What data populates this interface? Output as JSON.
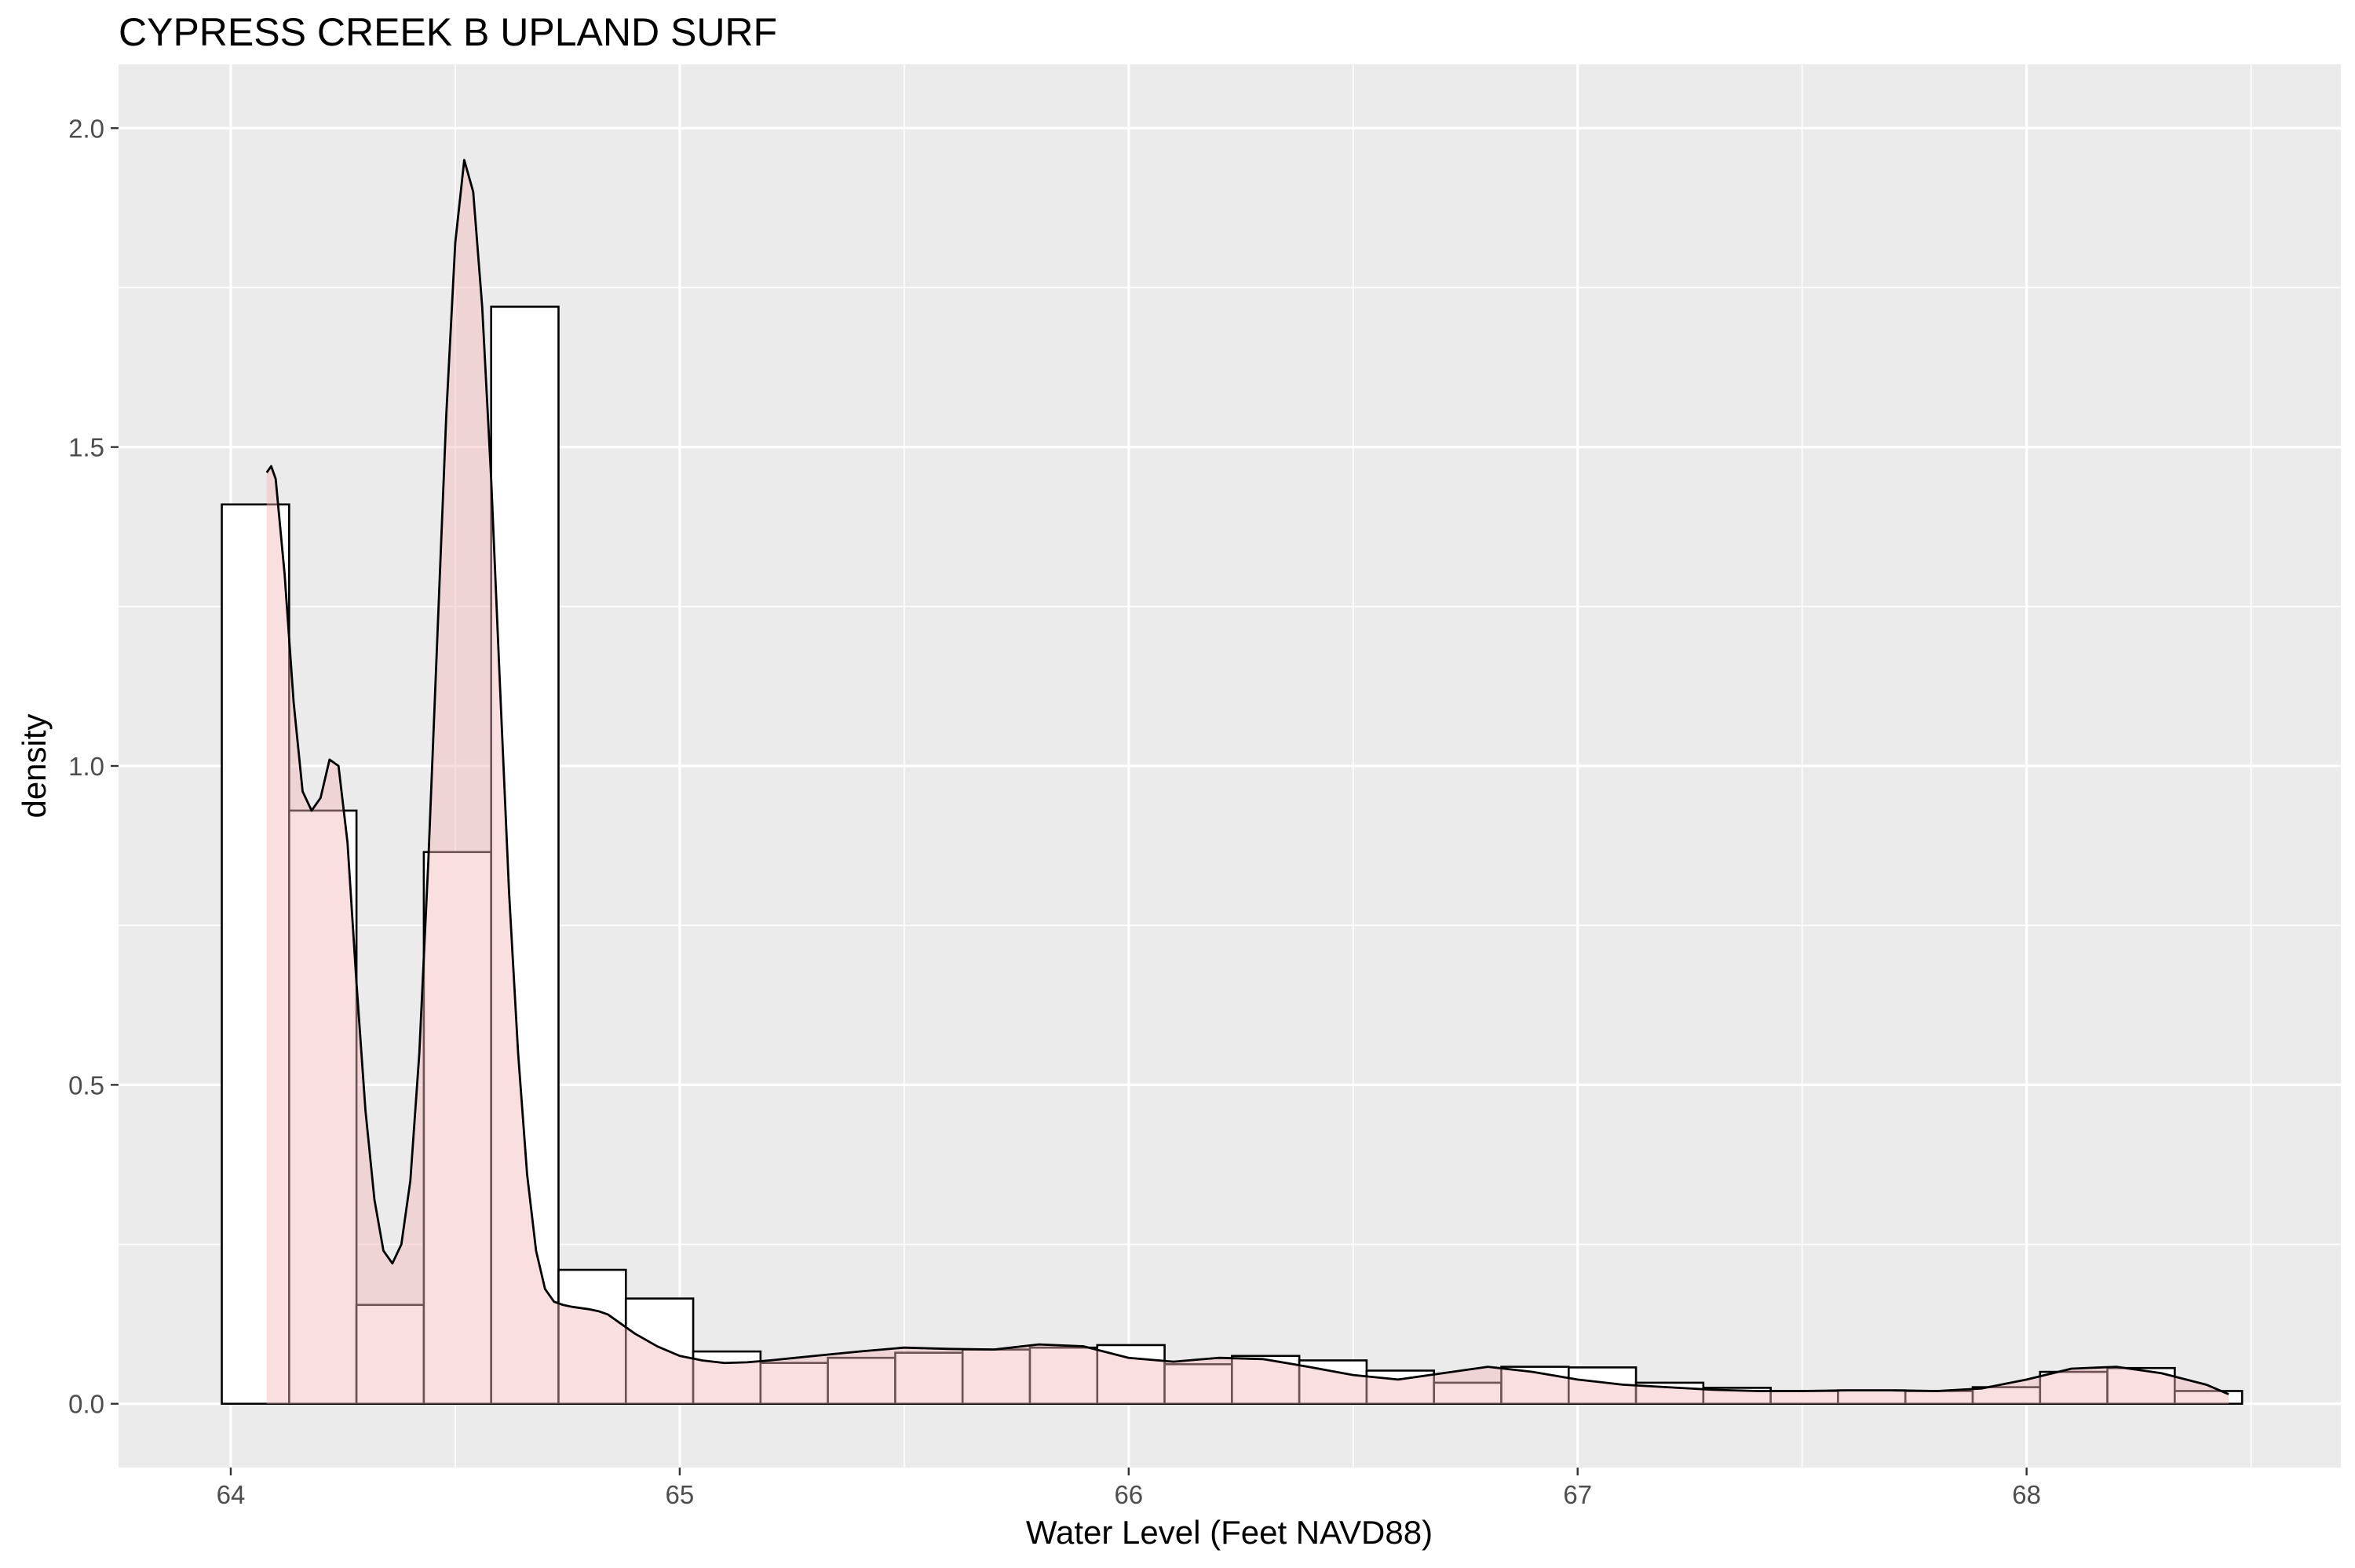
{
  "chart_data": {
    "type": "histogram",
    "title": "CYPRESS CREEK B UPLAND SURF",
    "xlabel": "Water Level (Feet NAVD88)",
    "ylabel": "density",
    "xlim": [
      63.75,
      68.7
    ],
    "ylim": [
      -0.1,
      2.1
    ],
    "x_ticks": [
      "64",
      "65",
      "66",
      "67",
      "68"
    ],
    "y_ticks": [
      "0.0",
      "0.5",
      "1.0",
      "1.5",
      "2.0"
    ],
    "grid": true,
    "background_color": "#ebebeb",
    "bar_fill_color": "#ffffff",
    "density_fill_color": "#f4b8bd",
    "line_color": "#000000",
    "bin_width": 0.15,
    "histogram_bins": [
      {
        "x0": 63.98,
        "x1": 64.13,
        "density": 1.41
      },
      {
        "x0": 64.13,
        "x1": 64.28,
        "density": 0.93
      },
      {
        "x0": 64.28,
        "x1": 64.43,
        "density": 0.155
      },
      {
        "x0": 64.43,
        "x1": 64.58,
        "density": 0.865
      },
      {
        "x0": 64.58,
        "x1": 64.73,
        "density": 1.72
      },
      {
        "x0": 64.73,
        "x1": 64.88,
        "density": 0.21
      },
      {
        "x0": 64.88,
        "x1": 65.03,
        "density": 0.165
      },
      {
        "x0": 65.03,
        "x1": 65.18,
        "density": 0.082
      },
      {
        "x0": 65.18,
        "x1": 65.33,
        "density": 0.064
      },
      {
        "x0": 65.33,
        "x1": 65.48,
        "density": 0.072
      },
      {
        "x0": 65.48,
        "x1": 65.63,
        "density": 0.08
      },
      {
        "x0": 65.63,
        "x1": 65.78,
        "density": 0.085
      },
      {
        "x0": 65.78,
        "x1": 65.93,
        "density": 0.088
      },
      {
        "x0": 65.93,
        "x1": 66.08,
        "density": 0.092
      },
      {
        "x0": 66.08,
        "x1": 66.23,
        "density": 0.062
      },
      {
        "x0": 66.23,
        "x1": 66.38,
        "density": 0.075
      },
      {
        "x0": 66.38,
        "x1": 66.53,
        "density": 0.068
      },
      {
        "x0": 66.53,
        "x1": 66.68,
        "density": 0.052
      },
      {
        "x0": 66.68,
        "x1": 66.83,
        "density": 0.033
      },
      {
        "x0": 66.83,
        "x1": 66.98,
        "density": 0.058
      },
      {
        "x0": 66.98,
        "x1": 67.13,
        "density": 0.057
      },
      {
        "x0": 67.13,
        "x1": 67.28,
        "density": 0.033
      },
      {
        "x0": 67.28,
        "x1": 67.43,
        "density": 0.025
      },
      {
        "x0": 67.43,
        "x1": 67.58,
        "density": 0.02
      },
      {
        "x0": 67.58,
        "x1": 67.73,
        "density": 0.021
      },
      {
        "x0": 67.73,
        "x1": 67.88,
        "density": 0.02
      },
      {
        "x0": 67.88,
        "x1": 68.03,
        "density": 0.026
      },
      {
        "x0": 68.03,
        "x1": 68.18,
        "density": 0.05
      },
      {
        "x0": 68.18,
        "x1": 68.33,
        "density": 0.056
      },
      {
        "x0": 68.33,
        "x1": 68.48,
        "density": 0.02
      }
    ],
    "density_curve": {
      "x": [
        64.08,
        64.09,
        64.1,
        64.12,
        64.14,
        64.16,
        64.18,
        64.2,
        64.22,
        64.24,
        64.26,
        64.28,
        64.3,
        64.32,
        64.34,
        64.36,
        64.38,
        64.4,
        64.42,
        64.44,
        64.46,
        64.48,
        64.5,
        64.52,
        64.54,
        64.56,
        64.58,
        64.6,
        64.62,
        64.64,
        64.66,
        64.68,
        64.7,
        64.72,
        64.74,
        64.76,
        64.78,
        64.8,
        64.82,
        64.84,
        64.86,
        64.88,
        64.9,
        64.95,
        65.0,
        65.05,
        65.1,
        65.15,
        65.2,
        65.3,
        65.4,
        65.5,
        65.6,
        65.7,
        65.8,
        65.9,
        66.0,
        66.1,
        66.2,
        66.3,
        66.4,
        66.5,
        66.6,
        66.7,
        66.8,
        66.9,
        67.0,
        67.1,
        67.2,
        67.3,
        67.4,
        67.5,
        67.6,
        67.7,
        67.8,
        67.9,
        68.0,
        68.1,
        68.2,
        68.3,
        68.4,
        68.45
      ],
      "y": [
        1.46,
        1.47,
        1.45,
        1.3,
        1.1,
        0.96,
        0.93,
        0.95,
        1.01,
        1.0,
        0.88,
        0.66,
        0.46,
        0.32,
        0.24,
        0.22,
        0.25,
        0.35,
        0.55,
        0.85,
        1.2,
        1.55,
        1.82,
        1.95,
        1.9,
        1.72,
        1.45,
        1.12,
        0.8,
        0.55,
        0.36,
        0.24,
        0.18,
        0.16,
        0.155,
        0.152,
        0.15,
        0.148,
        0.145,
        0.14,
        0.13,
        0.12,
        0.11,
        0.09,
        0.075,
        0.068,
        0.064,
        0.065,
        0.068,
        0.075,
        0.082,
        0.088,
        0.086,
        0.085,
        0.093,
        0.09,
        0.072,
        0.066,
        0.072,
        0.07,
        0.058,
        0.045,
        0.038,
        0.048,
        0.058,
        0.05,
        0.038,
        0.03,
        0.026,
        0.022,
        0.02,
        0.02,
        0.021,
        0.021,
        0.02,
        0.024,
        0.038,
        0.055,
        0.058,
        0.048,
        0.03,
        0.015
      ]
    }
  }
}
